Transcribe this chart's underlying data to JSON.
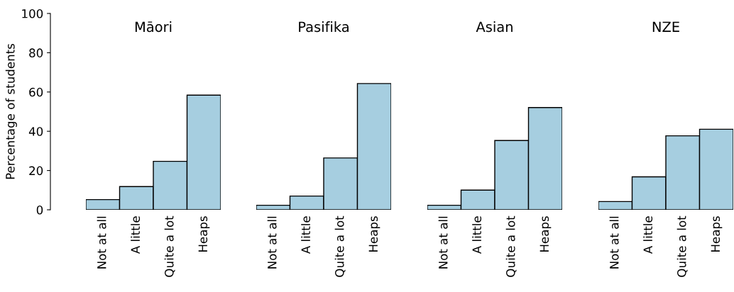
{
  "chart_data": [
    {
      "type": "bar",
      "title": "Māori",
      "ylabel": "Percentage of students",
      "categories": [
        "Not at all",
        "A little",
        "Quite a lot",
        "Heaps"
      ],
      "values": [
        5.2,
        11.8,
        24.7,
        58.4
      ],
      "color": "#a6cee0",
      "ylim": [
        0,
        100
      ],
      "yticks": [
        0,
        20,
        40,
        60,
        80,
        100
      ],
      "grid": false
    },
    {
      "type": "bar",
      "title": "Pasifika",
      "categories": [
        "Not at all",
        "A little",
        "Quite a lot",
        "Heaps"
      ],
      "values": [
        2.3,
        7.0,
        26.4,
        64.3
      ],
      "color": "#a6cee0",
      "ylim": [
        0,
        100
      ],
      "tick_labels": "x",
      "grid": false
    },
    {
      "type": "bar",
      "title": "Asian",
      "categories": [
        "Not at all",
        "A little",
        "Quite a lot",
        "Heaps"
      ],
      "values": [
        2.3,
        10.0,
        35.3,
        52.1
      ],
      "color": "#a6cee0",
      "ylim": [
        0,
        100
      ],
      "tick_labels": "x",
      "grid": false
    },
    {
      "type": "bar",
      "title": "NZE",
      "categories": [
        "Not at all",
        "A little",
        "Quite a lot",
        "Heaps"
      ],
      "values": [
        4.2,
        16.8,
        37.7,
        41.0
      ],
      "color": "#a6cee0",
      "ylim": [
        0,
        100
      ],
      "tick_labels": "x",
      "grid": false
    }
  ]
}
